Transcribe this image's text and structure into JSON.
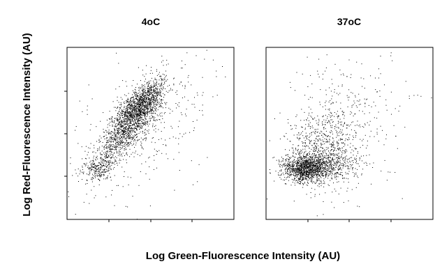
{
  "figure": {
    "ylabel": "Log Red-Fluorescence Intensity (AU)",
    "xlabel": "Log Green-Fluorescence Intensity (AU)"
  },
  "chart_data": [
    {
      "type": "scatter",
      "title": "4oC",
      "xlabel": "Log Green-Fluorescence Intensity (AU)",
      "ylabel": "Log Red-Fluorescence Intensity (AU)",
      "xlim": [
        0,
        1
      ],
      "ylim": [
        0,
        1
      ],
      "grid": false,
      "point_color": "#000000",
      "clusters": [
        {
          "center": [
            0.42,
            0.64
          ],
          "spread": [
            0.07,
            0.07
          ],
          "corr": 0.6,
          "count": 1300
        },
        {
          "center": [
            0.33,
            0.48
          ],
          "spread": [
            0.09,
            0.09
          ],
          "corr": 0.7,
          "count": 700
        },
        {
          "center": [
            0.2,
            0.3
          ],
          "spread": [
            0.05,
            0.04
          ],
          "corr": 0.4,
          "count": 250
        },
        {
          "center": [
            0.5,
            0.74
          ],
          "spread": [
            0.05,
            0.05
          ],
          "corr": 0.5,
          "count": 250
        },
        {
          "center": [
            0.45,
            0.55
          ],
          "spread": [
            0.25,
            0.25
          ],
          "corr": 0.6,
          "count": 350
        }
      ]
    },
    {
      "type": "scatter",
      "title": "37oC",
      "xlabel": "Log Green-Fluorescence Intensity (AU)",
      "ylabel": "Log Red-Fluorescence Intensity (AU)",
      "xlim": [
        0,
        1
      ],
      "ylim": [
        0,
        1
      ],
      "grid": false,
      "point_color": "#000000",
      "clusters": [
        {
          "center": [
            0.24,
            0.3
          ],
          "spread": [
            0.07,
            0.04
          ],
          "corr": 0.1,
          "count": 1200
        },
        {
          "center": [
            0.38,
            0.32
          ],
          "spread": [
            0.1,
            0.06
          ],
          "corr": 0.2,
          "count": 500
        },
        {
          "center": [
            0.32,
            0.46
          ],
          "spread": [
            0.1,
            0.1
          ],
          "corr": 0.3,
          "count": 450
        },
        {
          "center": [
            0.45,
            0.55
          ],
          "spread": [
            0.2,
            0.25
          ],
          "corr": 0.3,
          "count": 350
        }
      ]
    }
  ]
}
